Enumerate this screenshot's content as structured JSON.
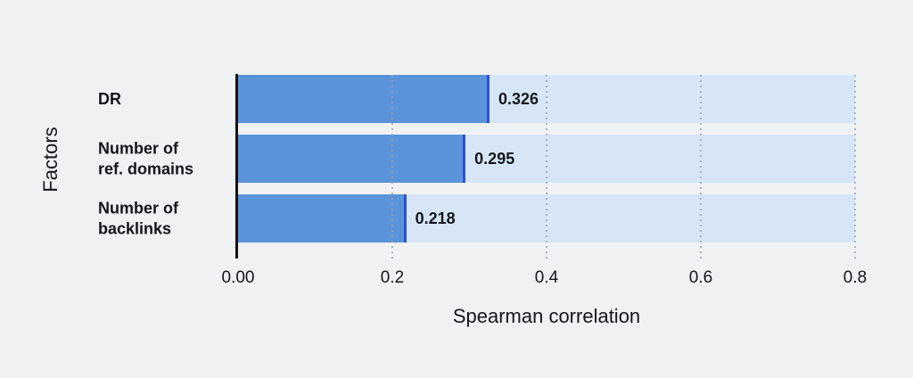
{
  "chart_data": {
    "type": "bar",
    "orientation": "horizontal",
    "xlabel": "Spearman correlation",
    "ylabel": "Factors",
    "categories": [
      "DR",
      "Number of\nref. domains",
      "Number of\nbacklinks"
    ],
    "values": [
      0.326,
      0.295,
      0.218
    ],
    "value_labels": [
      "0.326",
      "0.295",
      "0.218"
    ],
    "xlim": [
      0,
      0.8
    ],
    "x_ticks": [
      {
        "value": 0,
        "label": "0.00"
      },
      {
        "value": 0.2,
        "label": "0.2"
      },
      {
        "value": 0.4,
        "label": "0.4"
      },
      {
        "value": 0.6,
        "label": "0.6"
      },
      {
        "value": 0.8,
        "label": "0.8"
      }
    ],
    "grid": "dotted-vertical",
    "legend": "none",
    "colors": {
      "background": "#eff1f3",
      "bar_fill": "#5b93d8",
      "bar_track": "#d7e6f7",
      "bar_edge_line": "#2b50d4",
      "gridline": "#9ba1ad",
      "axis_line": "#121212",
      "text": "#141619"
    }
  }
}
